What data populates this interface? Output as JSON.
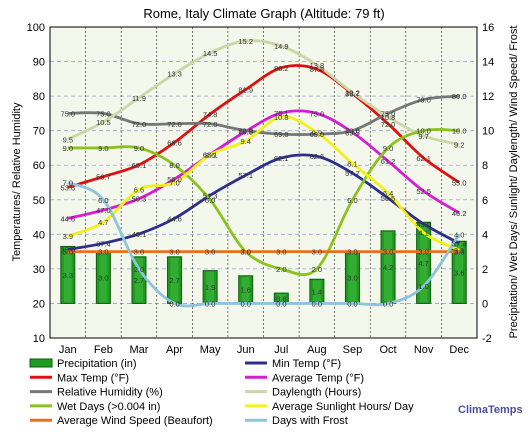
{
  "chart_data": {
    "type": "line",
    "title": "Rome, Italy Climate Graph (Altitude: 79 ft)",
    "ylabel_left": "Temperatures/ Relative Humidity",
    "ylabel_right": "Precipitation/ Wet Days/ Sunlight/ Daylength/ Wind Speed/ Frost",
    "ylim_left": [
      10,
      100
    ],
    "ylim_right": [
      -2,
      16
    ],
    "yticks_left": [
      "10",
      "20",
      "30",
      "40",
      "50",
      "60",
      "70",
      "80",
      "90",
      "100"
    ],
    "yticks_right": [
      "-2",
      "0",
      "2",
      "4",
      "6",
      "8",
      "10",
      "12",
      "14",
      "16"
    ],
    "categories": [
      "Jan",
      "Feb",
      "Mar",
      "Apr",
      "May",
      "Jun",
      "Jul",
      "Aug",
      "Sep",
      "Oct",
      "Nov",
      "Dec"
    ],
    "brand": "ClimaTemps",
    "series": [
      {
        "name": "Precipitation (in)",
        "axis": "right",
        "kind": "bar",
        "color": "#1f9b1f",
        "values": [
          3.3,
          3.0,
          2.7,
          2.7,
          1.9,
          1.6,
          0.6,
          1.4,
          3.0,
          4.2,
          4.7,
          3.6
        ],
        "labels": [
          "3.3",
          "3.0",
          "2.7",
          "2.7",
          "1.9",
          "1.6",
          "0.6",
          "1.4",
          "3.0",
          "4.2",
          "4.7",
          "3.6"
        ]
      },
      {
        "name": "Min Temp (°F)",
        "axis": "left",
        "kind": "line",
        "color": "#2e2e8c",
        "values": [
          35.6,
          37.4,
          40.1,
          44.6,
          51.3,
          57.1,
          62.1,
          62.6,
          57.7,
          50.5,
          43.0,
          37.4
        ],
        "labels": [
          "35.6",
          "37.4",
          "40.1",
          "44.6",
          "51.3",
          "57.1",
          "62.1",
          "62.6",
          "57.7",
          "50.5",
          "43.0",
          "37.4"
        ]
      },
      {
        "name": "Max Temp (°F)",
        "axis": "left",
        "kind": "line",
        "color": "#e01010",
        "values": [
          53.6,
          56.7,
          60.1,
          66.6,
          74.8,
          81.9,
          88.2,
          87.8,
          80.7,
          72.0,
          62.1,
          55.0
        ],
        "labels": [
          "53.6",
          "56.7",
          "60.1",
          "66.6",
          "74.8",
          "81.9",
          "88.2",
          "87.8",
          "80.7",
          "72.0",
          "62.1",
          "55.0"
        ]
      },
      {
        "name": "Average Temp (°F)",
        "axis": "left",
        "kind": "line",
        "color": "#d21fd2",
        "values": [
          44.6,
          47.0,
          50.3,
          56.0,
          63.1,
          69.8,
          75.1,
          75.0,
          69.5,
          61.2,
          52.5,
          46.2
        ],
        "labels": [
          "44.6",
          "47.0",
          "50.3",
          "56.0",
          "63.1",
          "69.8",
          "75.1",
          "75.0",
          "69.5",
          "61.2",
          "52.5",
          "46.2"
        ]
      },
      {
        "name": "Relative Humidity (%)",
        "axis": "left",
        "kind": "line",
        "color": "#777777",
        "values": [
          75.0,
          75.0,
          72.0,
          72.0,
          72.0,
          70.0,
          69.0,
          69.0,
          70.0,
          75.0,
          79.0,
          80.0
        ],
        "labels": [
          "75.0",
          "75.0",
          "72.0",
          "72.0",
          "72.0",
          "70.0",
          "69.0",
          "69.0",
          "70.0",
          "75.0",
          "79.0",
          "80.0"
        ]
      },
      {
        "name": "Daylength (Hours)",
        "axis": "right",
        "kind": "line",
        "color": "#c9d8a6",
        "values": [
          9.5,
          10.5,
          11.9,
          13.3,
          14.5,
          15.2,
          14.9,
          13.8,
          12.2,
          10.8,
          9.7,
          9.2
        ],
        "labels": [
          "9.5",
          "10.5",
          "11.9",
          "13.3",
          "14.5",
          "15.2",
          "14.9",
          "13.8",
          "12.2",
          "10.8",
          "9.7",
          "9.2"
        ]
      },
      {
        "name": "Wet Days (>0.004 in)",
        "axis": "right",
        "kind": "line",
        "color": "#8cc21e",
        "values": [
          9.0,
          9.0,
          9.0,
          8.0,
          6.0,
          3.0,
          2.0,
          2.0,
          6.0,
          9.0,
          10.0,
          10.0
        ],
        "labels": [
          "9.0",
          "9.0",
          "9.0",
          "8.0",
          "6.0",
          "3.0",
          "2.0",
          "2.0",
          "6.0",
          "9.0",
          "10.0",
          "10.0"
        ]
      },
      {
        "name": "Average Sunlight Hours/ Day",
        "axis": "right",
        "kind": "line",
        "color": "#f2f21a",
        "values": [
          3.9,
          4.7,
          6.6,
          7.0,
          8.6,
          9.4,
          10.8,
          9.9,
          8.1,
          6.4,
          4.1,
          3.1
        ],
        "labels": [
          "3.9",
          "4.7",
          "6.6",
          "7.0",
          "8.6",
          "9.4",
          "10.8",
          "9.9",
          "8.1",
          "6.4",
          "4.1",
          "3.1"
        ]
      },
      {
        "name": "Average Wind Speed (Beaufort)",
        "axis": "right",
        "kind": "line",
        "color": "#e8721c",
        "values": [
          3.0,
          3.0,
          3.0,
          3.0,
          3.0,
          3.0,
          3.0,
          3.0,
          3.0,
          3.0,
          3.0,
          3.0
        ],
        "labels": [
          "3.0",
          "3.0",
          "3.0",
          "3.0",
          "3.0",
          "3.0",
          "3.0",
          "3.0",
          "3.0",
          "3.0",
          "3.0",
          "3.0"
        ]
      },
      {
        "name": "Days with Frost",
        "axis": "right",
        "kind": "line",
        "color": "#8fc4dc",
        "values": [
          7.0,
          6.0,
          2.0,
          0.0,
          0.0,
          0.0,
          0.0,
          0.0,
          0.0,
          0.0,
          1.0,
          4.0
        ],
        "labels": [
          "7.0",
          "6.0",
          "2.0",
          "0.0",
          "0.0",
          "0.0",
          "0.0",
          "0.0",
          "0.0",
          "0.0",
          "1.0",
          "4.0"
        ]
      }
    ]
  }
}
